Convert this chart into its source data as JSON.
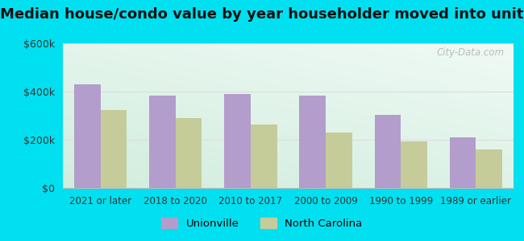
{
  "title": "Median house/condo value by year householder moved into unit",
  "categories": [
    "2021 or later",
    "2018 to 2020",
    "2010 to 2017",
    "2000 to 2009",
    "1990 to 1999",
    "1989 or earlier"
  ],
  "unionville": [
    430000,
    385000,
    390000,
    385000,
    305000,
    210000
  ],
  "north_carolina": [
    325000,
    290000,
    265000,
    230000,
    195000,
    160000
  ],
  "unionville_color": "#b39dcc",
  "nc_color": "#c5cc9a",
  "background_outer": "#00e0f0",
  "ylim": [
    0,
    600000
  ],
  "yticks": [
    0,
    200000,
    400000,
    600000
  ],
  "watermark": "City-Data.com",
  "legend_unionville": "Unionville",
  "legend_nc": "North Carolina",
  "title_fontsize": 13,
  "bar_width": 0.35
}
